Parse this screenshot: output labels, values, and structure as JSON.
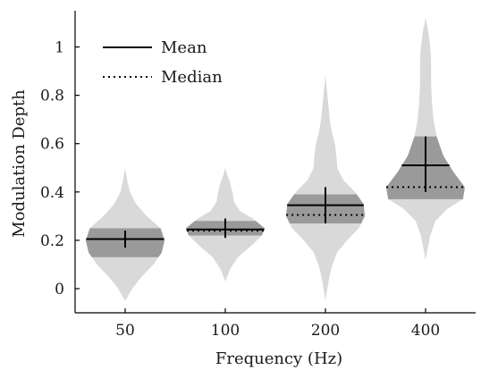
{
  "chart_data": {
    "type": "violin",
    "xlabel": "Frequency (Hz)",
    "ylabel": "Modulation Depth",
    "categories": [
      "50",
      "100",
      "200",
      "400"
    ],
    "ylim": [
      -0.1,
      1.15
    ],
    "yticks": [
      0,
      0.2,
      0.4,
      0.6,
      0.8,
      1
    ],
    "ytick_labels": [
      "0",
      "0.2",
      "0.4",
      "0.6",
      "0.8",
      "1"
    ],
    "grid": false,
    "legend": {
      "placement": "top-left",
      "entries": [
        {
          "label": "Mean",
          "style": "solid"
        },
        {
          "label": "Median",
          "style": "dotted"
        }
      ]
    },
    "colors": {
      "violin": "#d9d9d9",
      "iqr": "#9a9a9a",
      "line": "#000000"
    },
    "series": [
      {
        "category": "50",
        "min": -0.05,
        "max": 0.5,
        "q1": 0.13,
        "q3": 0.25,
        "mean": 0.205,
        "median": 0.205,
        "ci": [
          0.17,
          0.24
        ],
        "density": [
          [
            -0.05,
            0.0
          ],
          [
            0.0,
            0.18
          ],
          [
            0.05,
            0.42
          ],
          [
            0.1,
            0.72
          ],
          [
            0.15,
            0.93
          ],
          [
            0.2,
            1.0
          ],
          [
            0.25,
            0.9
          ],
          [
            0.3,
            0.55
          ],
          [
            0.35,
            0.28
          ],
          [
            0.4,
            0.12
          ],
          [
            0.45,
            0.05
          ],
          [
            0.5,
            0.0
          ]
        ]
      },
      {
        "category": "100",
        "min": 0.03,
        "max": 0.5,
        "q1": 0.22,
        "q3": 0.28,
        "mean": 0.245,
        "median": 0.24,
        "ci": [
          0.21,
          0.29
        ],
        "density": [
          [
            0.03,
            0.0
          ],
          [
            0.08,
            0.12
          ],
          [
            0.13,
            0.32
          ],
          [
            0.18,
            0.68
          ],
          [
            0.22,
            0.93
          ],
          [
            0.25,
            1.0
          ],
          [
            0.29,
            0.7
          ],
          [
            0.32,
            0.38
          ],
          [
            0.36,
            0.22
          ],
          [
            0.4,
            0.18
          ],
          [
            0.44,
            0.12
          ],
          [
            0.47,
            0.05
          ],
          [
            0.5,
            0.0
          ]
        ]
      },
      {
        "category": "200",
        "min": -0.05,
        "max": 0.88,
        "q1": 0.27,
        "q3": 0.39,
        "mean": 0.345,
        "median": 0.305,
        "ci": [
          0.27,
          0.42
        ],
        "density": [
          [
            -0.05,
            0.0
          ],
          [
            0.0,
            0.05
          ],
          [
            0.05,
            0.1
          ],
          [
            0.1,
            0.18
          ],
          [
            0.15,
            0.3
          ],
          [
            0.2,
            0.55
          ],
          [
            0.25,
            0.85
          ],
          [
            0.3,
            1.0
          ],
          [
            0.35,
            0.97
          ],
          [
            0.4,
            0.75
          ],
          [
            0.45,
            0.45
          ],
          [
            0.5,
            0.3
          ],
          [
            0.55,
            0.28
          ],
          [
            0.6,
            0.24
          ],
          [
            0.65,
            0.16
          ],
          [
            0.7,
            0.11
          ],
          [
            0.75,
            0.08
          ],
          [
            0.8,
            0.05
          ],
          [
            0.85,
            0.02
          ],
          [
            0.88,
            0.0
          ]
        ]
      },
      {
        "category": "400",
        "min": 0.12,
        "max": 1.12,
        "q1": 0.37,
        "q3": 0.63,
        "mean": 0.51,
        "median": 0.42,
        "ci": [
          0.4,
          0.63
        ],
        "density": [
          [
            0.12,
            0.0
          ],
          [
            0.17,
            0.06
          ],
          [
            0.22,
            0.12
          ],
          [
            0.28,
            0.25
          ],
          [
            0.33,
            0.55
          ],
          [
            0.37,
            0.95
          ],
          [
            0.42,
            1.0
          ],
          [
            0.48,
            0.72
          ],
          [
            0.55,
            0.45
          ],
          [
            0.63,
            0.28
          ],
          [
            0.7,
            0.2
          ],
          [
            0.78,
            0.16
          ],
          [
            0.85,
            0.14
          ],
          [
            0.92,
            0.14
          ],
          [
            0.98,
            0.13
          ],
          [
            1.04,
            0.09
          ],
          [
            1.08,
            0.05
          ],
          [
            1.12,
            0.0
          ]
        ]
      }
    ]
  }
}
